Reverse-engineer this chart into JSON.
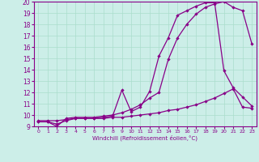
{
  "xlabel": "Windchill (Refroidissement éolien,°C)",
  "bg_color": "#cceee8",
  "line_color": "#880088",
  "xlim": [
    -0.5,
    23.5
  ],
  "ylim": [
    9,
    20
  ],
  "xticks": [
    0,
    1,
    2,
    3,
    4,
    5,
    6,
    7,
    8,
    9,
    10,
    11,
    12,
    13,
    14,
    15,
    16,
    17,
    18,
    19,
    20,
    21,
    22,
    23
  ],
  "yticks": [
    9,
    10,
    11,
    12,
    13,
    14,
    15,
    16,
    17,
    18,
    19,
    20
  ],
  "line1_x": [
    0,
    1,
    2,
    3,
    4,
    5,
    6,
    7,
    8,
    9,
    10,
    11,
    12,
    13,
    14,
    15,
    16,
    17,
    18,
    19,
    20,
    21,
    22,
    23
  ],
  "line1_y": [
    9.5,
    9.5,
    9.5,
    9.6,
    9.7,
    9.7,
    9.7,
    9.7,
    9.8,
    9.8,
    9.9,
    10.0,
    10.1,
    10.2,
    10.4,
    10.5,
    10.7,
    10.9,
    11.2,
    11.5,
    11.9,
    12.3,
    10.7,
    10.6
  ],
  "line2_x": [
    0,
    1,
    2,
    3,
    4,
    5,
    6,
    7,
    8,
    9,
    10,
    11,
    12,
    13,
    14,
    15,
    16,
    17,
    18,
    19,
    20,
    21,
    22,
    23
  ],
  "line2_y": [
    9.4,
    9.4,
    9.2,
    9.5,
    9.7,
    9.7,
    9.7,
    9.8,
    9.9,
    12.2,
    10.3,
    10.7,
    12.1,
    15.2,
    16.8,
    18.8,
    19.2,
    19.6,
    19.9,
    19.9,
    13.9,
    12.4,
    11.6,
    10.8
  ],
  "line3_x": [
    0,
    1,
    2,
    3,
    4,
    5,
    6,
    7,
    8,
    9,
    10,
    11,
    12,
    13,
    14,
    15,
    16,
    17,
    18,
    19,
    20,
    21,
    22,
    23
  ],
  "line3_y": [
    9.4,
    9.4,
    9.0,
    9.7,
    9.8,
    9.8,
    9.8,
    9.9,
    10.0,
    10.2,
    10.5,
    10.9,
    11.5,
    12.0,
    14.9,
    16.8,
    18.0,
    18.9,
    19.5,
    19.8,
    20.0,
    19.5,
    19.2,
    16.3
  ],
  "grid_color": "#aaddcc",
  "marker": "D",
  "markersize": 2.2,
  "linewidth": 0.9
}
